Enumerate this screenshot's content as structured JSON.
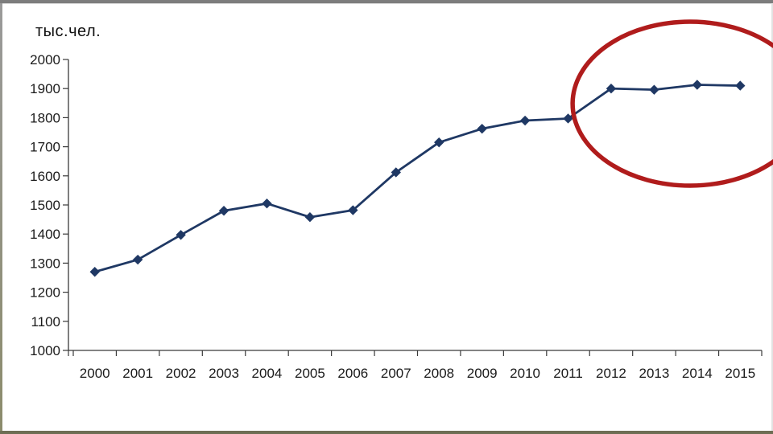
{
  "slide": {
    "background": "#ffffff",
    "top_border_color": "#7d7d7d",
    "bottom_border_color": "#6e6e54"
  },
  "chart_data": {
    "type": "line",
    "title": "тыс.чел.",
    "categories": [
      "2000",
      "2001",
      "2002",
      "2003",
      "2004",
      "2005",
      "2006",
      "2007",
      "2008",
      "2009",
      "2010",
      "2011",
      "2012",
      "2013",
      "2014",
      "2015"
    ],
    "values": [
      1270,
      1312,
      1397,
      1480,
      1505,
      1458,
      1482,
      1612,
      1715,
      1762,
      1790,
      1797,
      1900,
      1896,
      1913,
      1910
    ],
    "xlabel": "",
    "ylabel": "тыс.чел.",
    "ylim": [
      1000,
      2000
    ],
    "ytick_step": 100,
    "yticks": [
      1000,
      1100,
      1200,
      1300,
      1400,
      1500,
      1600,
      1700,
      1800,
      1900,
      2000
    ],
    "grid": false,
    "legend": false,
    "line_color": "#1f3864",
    "marker": "diamond",
    "marker_color": "#1f3864",
    "axis_color": "#3a3a3a",
    "annotation": {
      "shape": "ellipse",
      "color": "#b01c1c",
      "circled_categories": [
        "2012",
        "2013",
        "2014",
        "2015"
      ]
    }
  }
}
